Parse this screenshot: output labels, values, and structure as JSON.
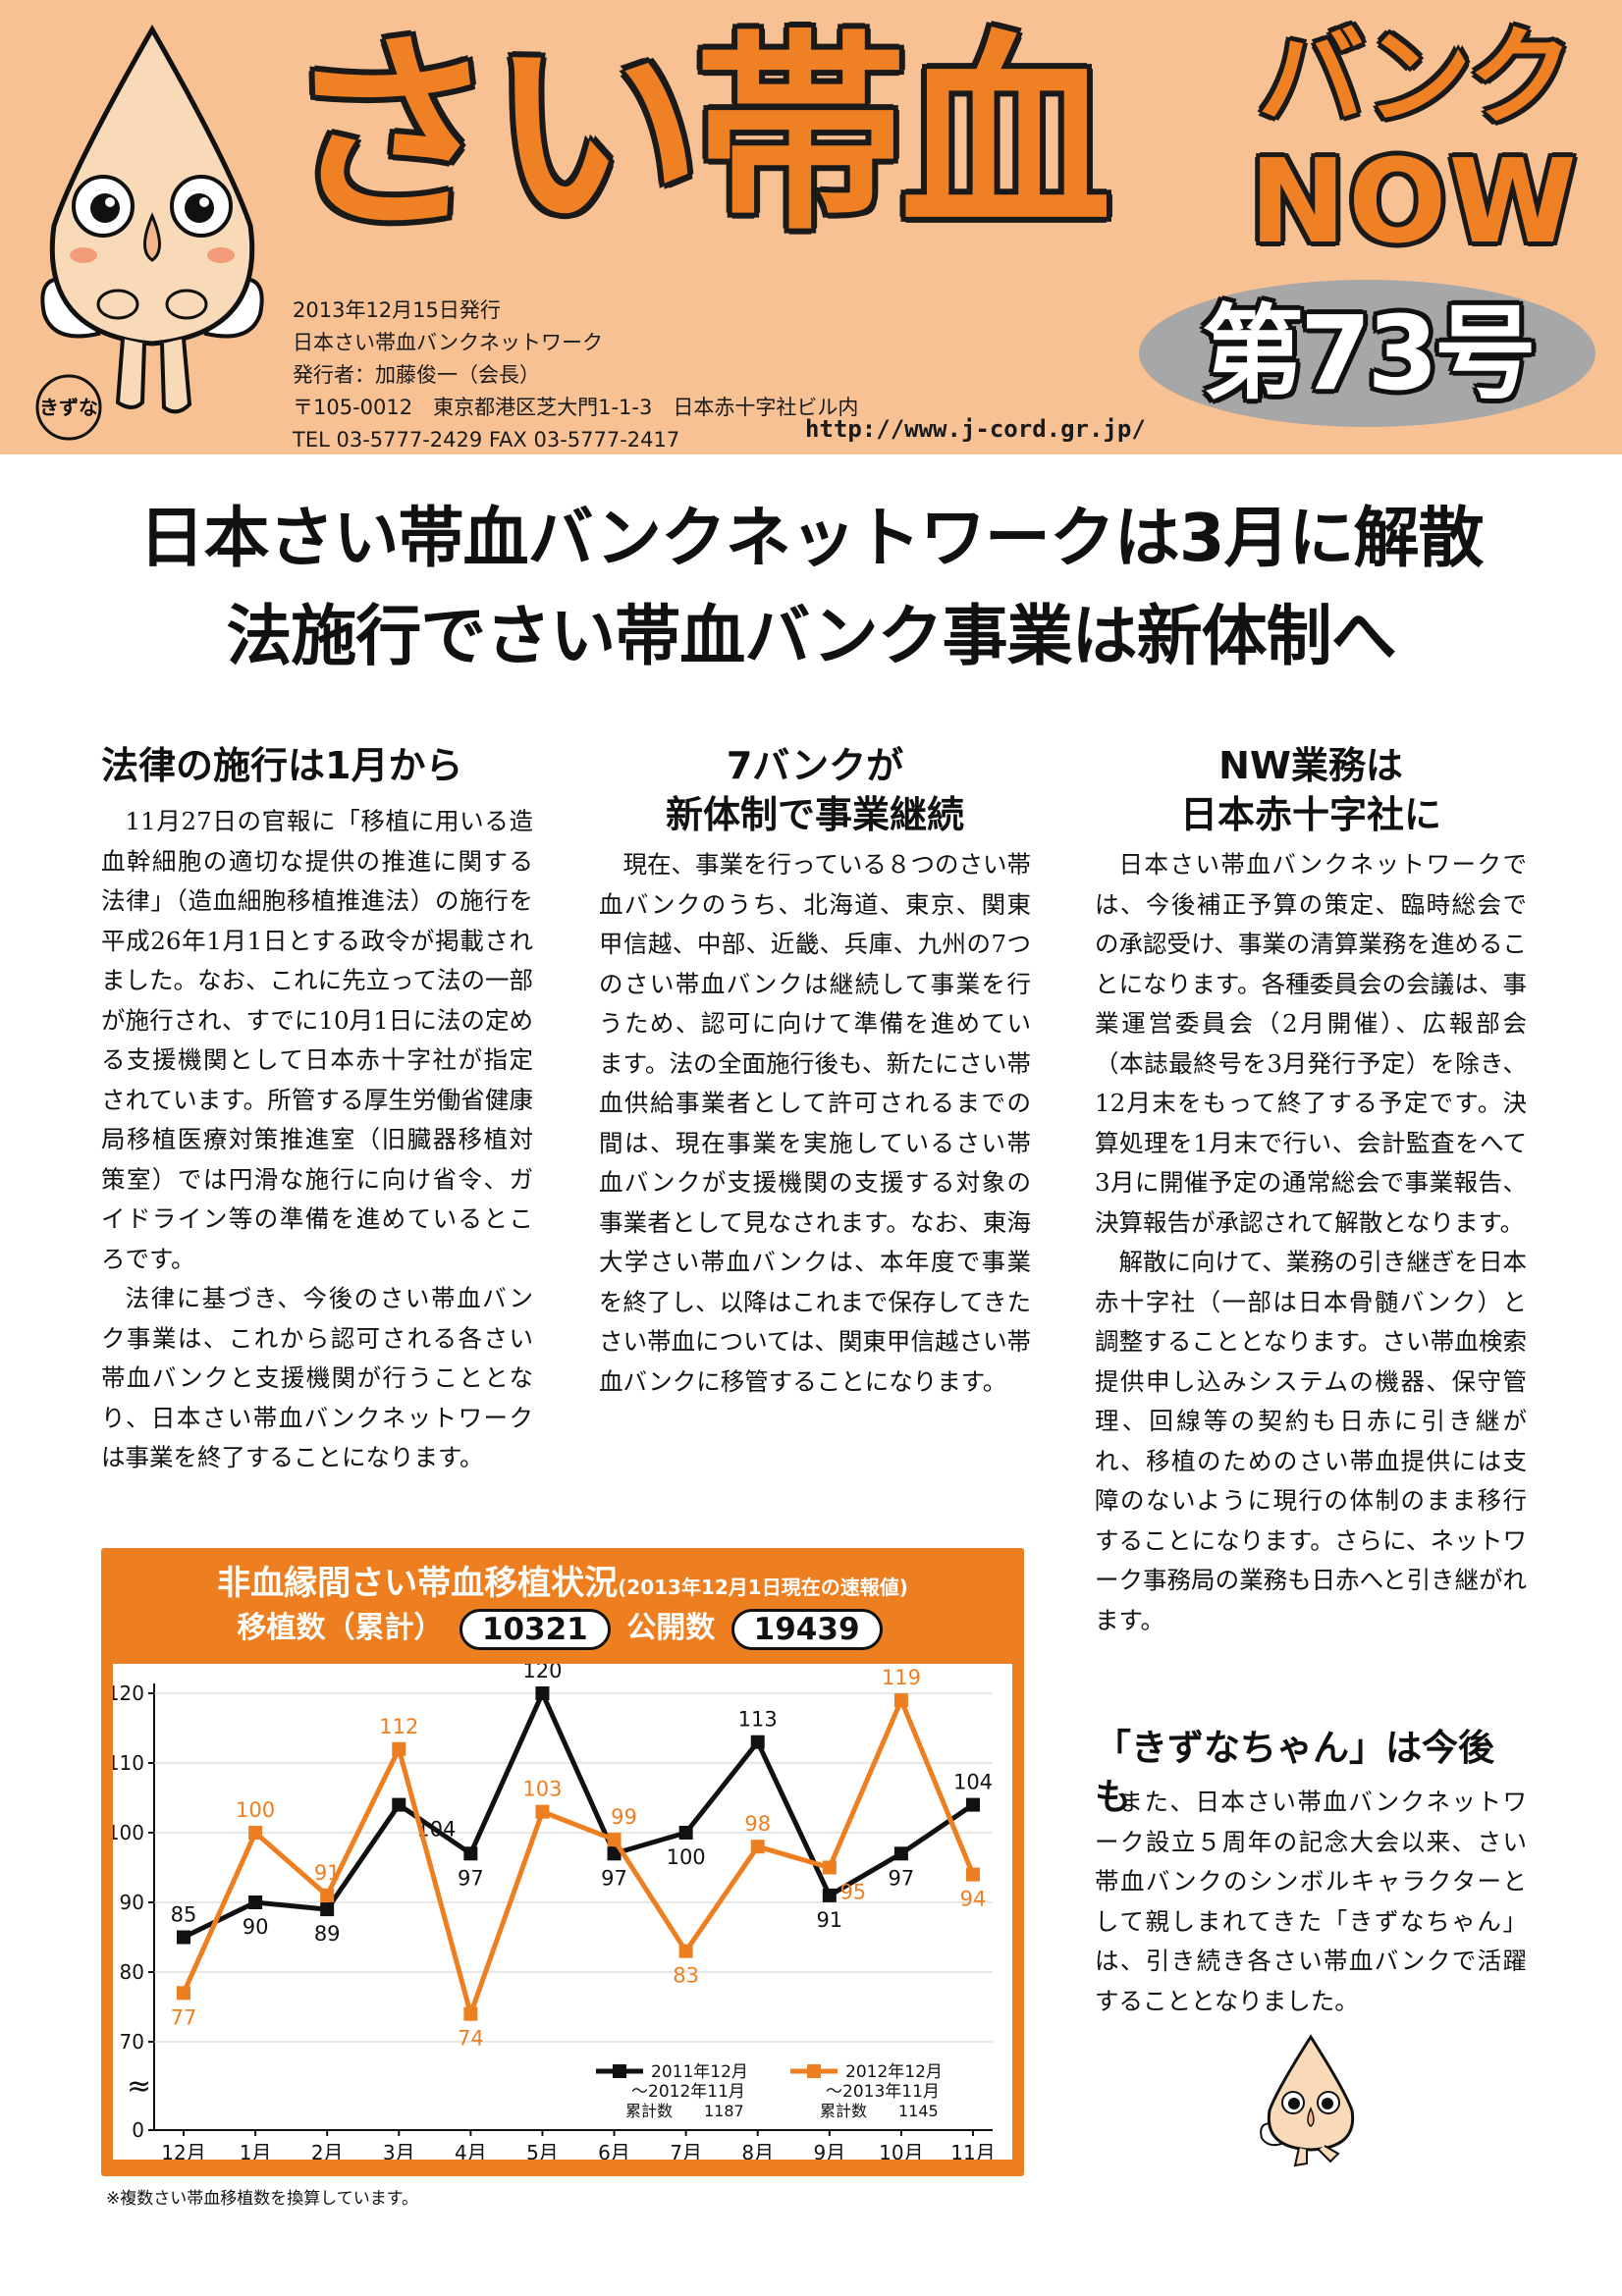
{
  "masthead": {
    "brand_main": "さい帯血",
    "brand_bank": "バンク",
    "brand_now": "NOW",
    "issue": "第73号",
    "pub_lines": [
      "2013年12月15日発行",
      "日本さい帯血バンクネットワーク",
      "発行者：加藤俊一（会長）",
      "〒105-0012　東京都港区芝大門1-1-3　日本赤十字社ビル内",
      "TEL 03-5777-2429 FAX 03-5777-2417"
    ],
    "url": "http://www.j-cord.gr.jp/",
    "mascot_badge": "きずな"
  },
  "headline": {
    "line1": "日本さい帯血バンクネットワークは3月に解散",
    "line2": "法施行でさい帯血バンク事業は新体制へ"
  },
  "col1": {
    "heading": "法律の施行は1月から",
    "paragraphs": [
      "11月27日の官報に「移植に用いる造血幹細胞の適切な提供の推進に関する法律」（造血細胞移植推進法）の施行を平成26年1月1日とする政令が掲載されました。なお、これに先立って法の一部が施行され、すでに10月1日に法の定める支援機関として日本赤十字社が指定されています。所管する厚生労働省健康局移植医療対策推進室（旧臓器移植対策室）では円滑な施行に向け省令、ガイドライン等の準備を進めているところです。",
      "法律に基づき、今後のさい帯血バンク事業は、これから認可される各さい帯血バンクと支援機関が行うこととなり、日本さい帯血バンクネットワークは事業を終了することになります。"
    ]
  },
  "col2": {
    "heading_line1": "7バンクが",
    "heading_line2": "新体制で事業継続",
    "paragraphs": [
      "現在、事業を行っている８つのさい帯血バンクのうち、北海道、東京、関東甲信越、中部、近畿、兵庫、九州の7つのさい帯血バンクは継続して事業を行うため、認可に向けて準備を進めています。法の全面施行後も、新たにさい帯血供給事業者として許可されるまでの間は、現在事業を実施しているさい帯血バンクが支援機関の支援する対象の事業者として見なされます。なお、東海大学さい帯血バンクは、本年度で事業を終了し、以降はこれまで保存してきたさい帯血については、関東甲信越さい帯血バンクに移管することになります。"
    ]
  },
  "col3": {
    "heading_line1": "NW業務は",
    "heading_line2": "日本赤十字社に",
    "paragraphs": [
      "日本さい帯血バンクネットワークでは、今後補正予算の策定、臨時総会での承認受け、事業の清算業務を進めることになります。各種委員会の会議は、事業運営委員会（2月開催）、広報部会（本誌最終号を3月発行予定）を除き、12月末をもって終了する予定です。決算処理を1月末で行い、会計監査をへて3月に開催予定の通常総会で事業報告、決算報告が承認されて解散となります。",
      "解散に向けて、業務の引き継ぎを日本赤十字社（一部は日本骨髄バンク）と調整することとなります。さい帯血検索提供申し込みシステムの機器、保守管理、回線等の契約も日赤に引き継がれ、移植のためのさい帯血提供には支障のないように現行の体制のまま移行することになります。さらに、ネットワーク事務局の業務も日赤へと引き継がれます。"
    ]
  },
  "kizuna": {
    "heading": "「きずなちゃん」は今後も",
    "paragraph": "また、日本さい帯血バンクネットワーク設立５周年の記念大会以来、さい帯血バンクのシンボルキャラクターとして親しまれてきた「きずなちゃん」は、引き続き各さい帯血バンクで活躍することとなりました。"
  },
  "chart_box": {
    "title": "非血縁間さい帯血移植状況",
    "title_note": "(2013年12月1日現在の速報値)",
    "label_transplants": "移植数（累計）",
    "value_transplants": "10321",
    "label_public": "公開数",
    "value_public": "19439",
    "footnote": "※複数さい帯血移植数を換算しています。"
  },
  "chart_data": {
    "type": "line",
    "categories": [
      "12月",
      "1月",
      "2月",
      "3月",
      "4月",
      "5月",
      "6月",
      "7月",
      "8月",
      "9月",
      "10月",
      "11月"
    ],
    "series": [
      {
        "name_line1": "2011年12月",
        "name_line2": "〜2012年11月",
        "total_label": "累計数",
        "total": "1187",
        "color": "#111111",
        "values": [
          85,
          90,
          89,
          104,
          97,
          120,
          97,
          100,
          113,
          91,
          97,
          104
        ]
      },
      {
        "name_line1": "2012年12月",
        "name_line2": "〜2013年11月",
        "total_label": "累計数",
        "total": "1145",
        "color": "#ee7f21",
        "values": [
          77,
          100,
          91,
          112,
          74,
          103,
          99,
          83,
          98,
          95,
          119,
          94
        ]
      }
    ],
    "y_ticks": [
      0,
      70,
      80,
      90,
      100,
      110,
      120
    ],
    "ylim": [
      70,
      120
    ],
    "axis_break": "≈",
    "grid": true,
    "legend_position": "bottom-right"
  },
  "colors": {
    "masthead_bg": "#f8c194",
    "accent_orange": "#ee7f21",
    "issue_oval": "#a7a7a7"
  }
}
